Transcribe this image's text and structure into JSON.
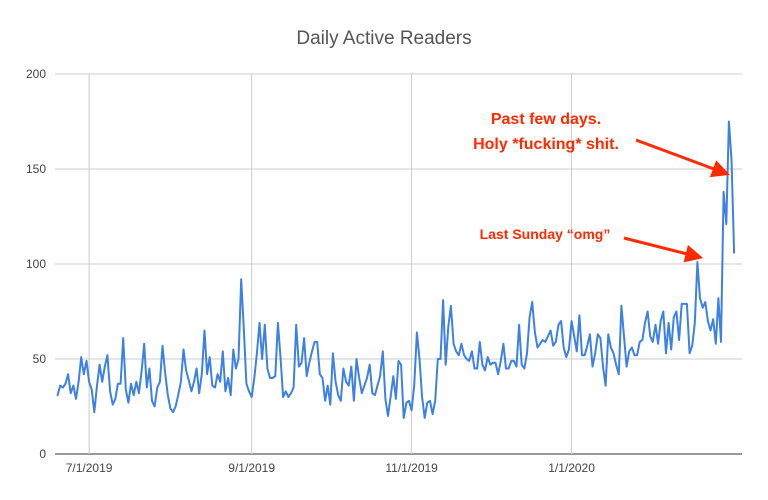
{
  "chart_data": {
    "type": "line",
    "title": "Daily Active Readers",
    "xlabel": "",
    "ylabel": "",
    "ylim": [
      0,
      200
    ],
    "y_ticks": [
      "0",
      "50",
      "100",
      "150",
      "200"
    ],
    "x_range": [
      "2019-06-18",
      "2020-03-06"
    ],
    "x_ticks": [
      {
        "date": "2019-07-01",
        "label": "7/1/2019"
      },
      {
        "date": "2019-09-01",
        "label": "9/1/2019"
      },
      {
        "date": "2019-11-01",
        "label": "11/1/2019"
      },
      {
        "date": "2020-01-01",
        "label": "1/1/2020"
      }
    ],
    "grid": true,
    "legend": "none",
    "series": [
      {
        "color": "#3d80e6",
        "start_date": "2019-06-19",
        "values": [
          31,
          36,
          35,
          37,
          42,
          32,
          36,
          29,
          38,
          51,
          42,
          49,
          38,
          34,
          22,
          36,
          47,
          38,
          46,
          52,
          33,
          26,
          29,
          37,
          37,
          61,
          34,
          27,
          37,
          31,
          38,
          32,
          43,
          58,
          35,
          45,
          28,
          25,
          35,
          38,
          57,
          43,
          31,
          24,
          22,
          25,
          31,
          38,
          55,
          44,
          39,
          33,
          38,
          45,
          32,
          42,
          65,
          42,
          51,
          36,
          35,
          42,
          38,
          54,
          33,
          40,
          31,
          55,
          45,
          50,
          92,
          66,
          37,
          33,
          30,
          40,
          53,
          69,
          50,
          68,
          45,
          40,
          40,
          41,
          69,
          51,
          30,
          33,
          30,
          32,
          35,
          68,
          46,
          48,
          61,
          41,
          48,
          54,
          59,
          59,
          42,
          40,
          28,
          36,
          26,
          53,
          38,
          31,
          28,
          45,
          38,
          36,
          46,
          28,
          50,
          40,
          32,
          36,
          40,
          47,
          32,
          31,
          36,
          41,
          54,
          29,
          20,
          30,
          41,
          29,
          49,
          47,
          19,
          27,
          28,
          23,
          36,
          64,
          50,
          30,
          19,
          27,
          28,
          21,
          28,
          50,
          50,
          81,
          47,
          67,
          78,
          58,
          54,
          52,
          58,
          52,
          50,
          49,
          54,
          45,
          45,
          59,
          47,
          44,
          51,
          47,
          48,
          48,
          42,
          49,
          58,
          45,
          45,
          49,
          49,
          46,
          68,
          47,
          45,
          53,
          72,
          80,
          64,
          56,
          58,
          60,
          59,
          62,
          65,
          57,
          59,
          68,
          70,
          56,
          51,
          55,
          70,
          62,
          54,
          73,
          52,
          52,
          57,
          63,
          46,
          53,
          63,
          61,
          46,
          36,
          63,
          56,
          53,
          47,
          42,
          78,
          62,
          46,
          54,
          56,
          52,
          52,
          59,
          60,
          69,
          75,
          62,
          59,
          68,
          58,
          70,
          75,
          53,
          69,
          55,
          72,
          75,
          60,
          79,
          79,
          79,
          53,
          57,
          69,
          101,
          82,
          77,
          80,
          70,
          65,
          71,
          58,
          82,
          59,
          138,
          121,
          175,
          155,
          106
        ]
      }
    ],
    "annotations": [
      {
        "lines": [
          "Past few days.",
          "Holy *fucking* shit."
        ]
      },
      {
        "lines": [
          "Last Sunday “omg”"
        ]
      }
    ]
  }
}
